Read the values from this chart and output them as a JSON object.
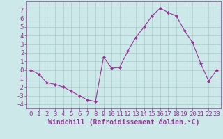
{
  "x": [
    0,
    1,
    2,
    3,
    4,
    5,
    6,
    7,
    8,
    9,
    10,
    11,
    12,
    13,
    14,
    15,
    16,
    17,
    18,
    19,
    20,
    21,
    22,
    23
  ],
  "y": [
    0,
    -0.5,
    -1.5,
    -1.7,
    -2.0,
    -2.5,
    -3.0,
    -3.5,
    -3.7,
    1.5,
    0.2,
    0.3,
    2.2,
    3.8,
    5.0,
    6.3,
    7.2,
    6.7,
    6.3,
    4.6,
    3.2,
    0.8,
    -1.3,
    0.0
  ],
  "line_color": "#993399",
  "marker": "D",
  "marker_size": 2,
  "bg_color": "#cce8e8",
  "grid_color": "#aacccc",
  "xlabel": "Windchill (Refroidissement éolien,°C)",
  "xlabel_fontsize": 7,
  "tick_fontsize": 6.5,
  "xlim": [
    -0.5,
    23.5
  ],
  "ylim": [
    -4.5,
    8
  ],
  "yticks": [
    -4,
    -3,
    -2,
    -1,
    0,
    1,
    2,
    3,
    4,
    5,
    6,
    7
  ],
  "xticks": [
    0,
    1,
    2,
    3,
    4,
    5,
    6,
    7,
    8,
    9,
    10,
    11,
    12,
    13,
    14,
    15,
    16,
    17,
    18,
    19,
    20,
    21,
    22,
    23
  ],
  "tick_color": "#993399",
  "label_color": "#993399"
}
